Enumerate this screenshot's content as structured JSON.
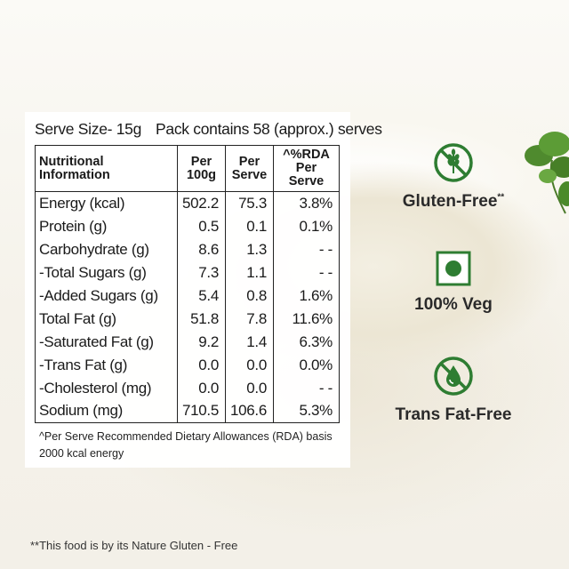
{
  "serve": {
    "size": "Serve Size- 15g",
    "pack": "Pack contains 58 (approx.) serves"
  },
  "table": {
    "headers": {
      "name": "Nutritional Information",
      "per100": "Per 100g",
      "perServe": "Per Serve",
      "rda": "^%RDA Per Serve"
    },
    "rows": [
      {
        "name": "Energy (kcal)",
        "per100": "502.2",
        "perServe": "75.3",
        "rda": "3.8%"
      },
      {
        "name": "Protein (g)",
        "per100": "0.5",
        "perServe": "0.1",
        "rda": "0.1%"
      },
      {
        "name": "Carbohydrate (g)",
        "per100": "8.6",
        "perServe": "1.3",
        "rda": "- -"
      },
      {
        "name": "-Total Sugars (g)",
        "per100": "7.3",
        "perServe": "1.1",
        "rda": "- -"
      },
      {
        "name": "-Added Sugars (g)",
        "per100": "5.4",
        "perServe": "0.8",
        "rda": "1.6%"
      },
      {
        "name": "Total Fat (g)",
        "per100": "51.8",
        "perServe": "7.8",
        "rda": "11.6%"
      },
      {
        "name": "-Saturated Fat (g)",
        "per100": "9.2",
        "perServe": "1.4",
        "rda": "6.3%"
      },
      {
        "name": "-Trans Fat (g)",
        "per100": "0.0",
        "perServe": "0.0",
        "rda": "0.0%"
      },
      {
        "name": "-Cholesterol (mg)",
        "per100": "0.0",
        "perServe": "0.0",
        "rda": "- -"
      },
      {
        "name": "Sodium (mg)",
        "per100": "710.5",
        "perServe": "106.6",
        "rda": "5.3%"
      }
    ]
  },
  "footnote": "^Per Serve Recommended Dietary Allowances (RDA) basis 2000 kcal energy",
  "bottom_note": "**This food is by its Nature Gluten - Free",
  "badges": [
    {
      "label": "Gluten-Free",
      "mark": "**",
      "icon": "no-wheat-icon"
    },
    {
      "label": "100% Veg",
      "mark": "",
      "icon": "veg-symbol-icon"
    },
    {
      "label": "Trans Fat-Free",
      "mark": "",
      "icon": "no-oil-drop-icon"
    }
  ],
  "colors": {
    "icon_green": "#2e7d32",
    "text_dark": "#2a2a2a"
  }
}
